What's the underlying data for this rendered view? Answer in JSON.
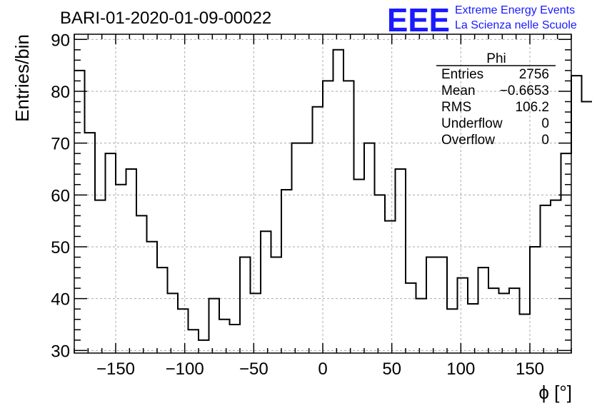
{
  "title": "BARI-01-2020-01-09-00022",
  "logo": {
    "mark": "EEE",
    "line1": "Extreme Energy Events",
    "line2": "La Scienza nelle Scuole",
    "color": "#1a1aff"
  },
  "stats": {
    "title": "Phi",
    "rows": [
      {
        "label": "Entries",
        "value": "2756"
      },
      {
        "label": "Mean",
        "value": "−0.6653"
      },
      {
        "label": "RMS",
        "value": "106.2"
      },
      {
        "label": "Underflow",
        "value": "0"
      },
      {
        "label": "Overflow",
        "value": "0"
      }
    ]
  },
  "chart_data": {
    "type": "bar",
    "histogram": "step",
    "xlabel": "ϕ [°]",
    "ylabel": "Entries/bin",
    "xlim": [
      -180,
      180
    ],
    "ylim": [
      29.5,
      91
    ],
    "bin_width": 7.5,
    "bin_edges_start": -180,
    "values": [
      84,
      72,
      59,
      68,
      62,
      65,
      56,
      51,
      46,
      41,
      38,
      34,
      32,
      40,
      36,
      35,
      48,
      41,
      53,
      48,
      61,
      70,
      70,
      77,
      82,
      88,
      82,
      63,
      70,
      60,
      55,
      65,
      43,
      40,
      48,
      48,
      38,
      44,
      39,
      46,
      42,
      41,
      42,
      37,
      50,
      58,
      59,
      68,
      83,
      78
    ],
    "xticks": [
      -150,
      -100,
      -50,
      0,
      50,
      100,
      150
    ],
    "xtick_labels": [
      "−150",
      "−100",
      "−50",
      "0",
      "50",
      "100",
      "150"
    ],
    "yticks": [
      30,
      40,
      50,
      60,
      70,
      80,
      90
    ],
    "ytick_labels": [
      "30",
      "40",
      "50",
      "60",
      "70",
      "80",
      "90"
    ],
    "grid": true,
    "line_color": "#000000"
  }
}
